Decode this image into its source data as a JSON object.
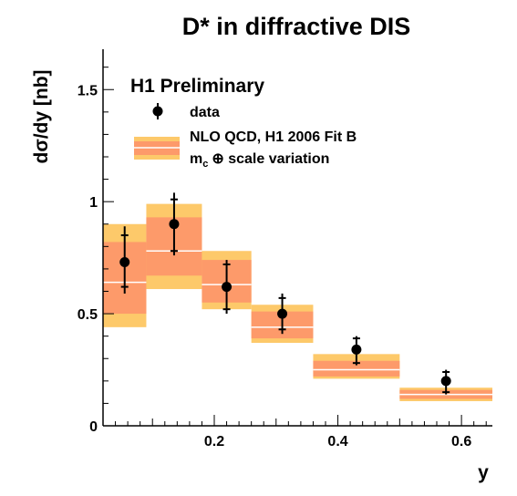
{
  "chart_data": {
    "type": "bar",
    "title": "D* in diffractive DIS",
    "xlabel": "y",
    "ylabel": "dσ/dy [nb]",
    "xlim": [
      0.02,
      0.65
    ],
    "ylim": [
      0,
      1.68
    ],
    "x_ticks": [
      0.2,
      0.4,
      0.6
    ],
    "x_tick_labels": [
      "0.2",
      "0.4",
      "0.6"
    ],
    "y_ticks": [
      0,
      0.5,
      1,
      1.5
    ],
    "y_tick_labels": [
      "0",
      "0.5",
      "1",
      "1.5"
    ],
    "grid": false,
    "legend_position": "top-left",
    "annotation": "H1 Preliminary",
    "legend": {
      "data_label": "data",
      "nlo_label_line1": "NLO QCD, H1 2006 Fit B",
      "nlo_label_line2_symbol": "m",
      "nlo_label_line2_subscript": "c",
      "nlo_label_line2_rest": "⊕ scale variation"
    },
    "colors": {
      "total_band": "#fdc96a",
      "inner_band": "#fd9a6a",
      "central_line": "#ffffff",
      "data": "#000000"
    },
    "data": [
      {
        "x": 0.055,
        "y": 0.73,
        "stat_lo": 0.62,
        "stat_hi": 0.85,
        "tot_lo": 0.59,
        "tot_hi": 0.89
      },
      {
        "x": 0.135,
        "y": 0.9,
        "stat_lo": 0.78,
        "stat_hi": 1.01,
        "tot_lo": 0.76,
        "tot_hi": 1.04
      },
      {
        "x": 0.22,
        "y": 0.62,
        "stat_lo": 0.52,
        "stat_hi": 0.72,
        "tot_lo": 0.5,
        "tot_hi": 0.74
      },
      {
        "x": 0.31,
        "y": 0.5,
        "stat_lo": 0.43,
        "stat_hi": 0.57,
        "tot_lo": 0.41,
        "tot_hi": 0.59
      },
      {
        "x": 0.43,
        "y": 0.34,
        "stat_lo": 0.28,
        "stat_hi": 0.39,
        "tot_lo": 0.27,
        "tot_hi": 0.4
      },
      {
        "x": 0.575,
        "y": 0.2,
        "stat_lo": 0.15,
        "stat_hi": 0.24,
        "tot_lo": 0.14,
        "tot_hi": 0.25
      }
    ],
    "nlo_bins": [
      {
        "x_lo": 0.02,
        "x_hi": 0.09,
        "central": 0.64,
        "inner_lo": 0.5,
        "inner_hi": 0.82,
        "outer_lo": 0.44,
        "outer_hi": 0.9
      },
      {
        "x_lo": 0.09,
        "x_hi": 0.18,
        "central": 0.78,
        "inner_lo": 0.67,
        "inner_hi": 0.93,
        "outer_lo": 0.61,
        "outer_hi": 0.99
      },
      {
        "x_lo": 0.18,
        "x_hi": 0.26,
        "central": 0.63,
        "inner_lo": 0.55,
        "inner_hi": 0.74,
        "outer_lo": 0.52,
        "outer_hi": 0.78
      },
      {
        "x_lo": 0.26,
        "x_hi": 0.36,
        "central": 0.44,
        "inner_lo": 0.39,
        "inner_hi": 0.51,
        "outer_lo": 0.37,
        "outer_hi": 0.54
      },
      {
        "x_lo": 0.36,
        "x_hi": 0.5,
        "central": 0.25,
        "inner_lo": 0.22,
        "inner_hi": 0.29,
        "outer_lo": 0.21,
        "outer_hi": 0.32
      },
      {
        "x_lo": 0.5,
        "x_hi": 0.65,
        "central": 0.14,
        "inner_lo": 0.12,
        "inner_hi": 0.16,
        "outer_lo": 0.11,
        "outer_hi": 0.17
      }
    ]
  }
}
